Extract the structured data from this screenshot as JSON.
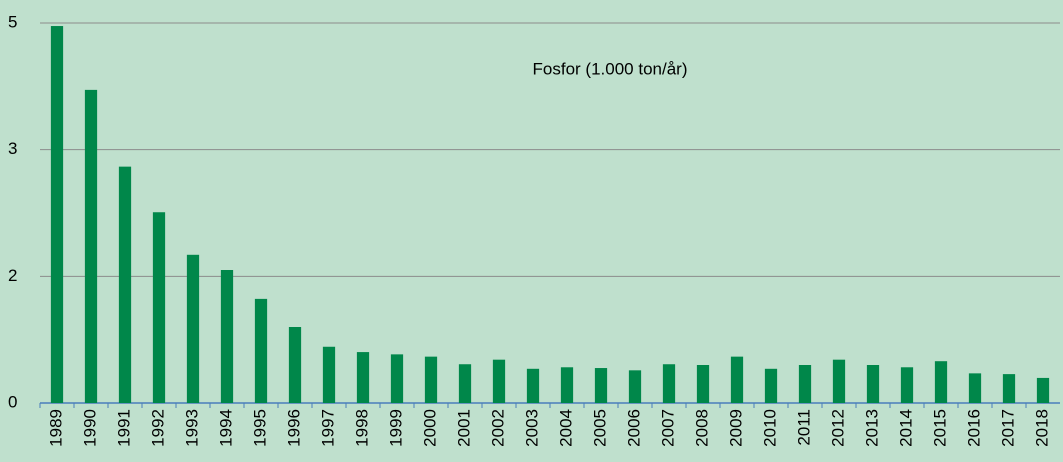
{
  "chart_data": {
    "type": "bar",
    "annotation": "Fosfor (1.000 ton/år)",
    "categories": [
      "1989",
      "1990",
      "1991",
      "1992",
      "1993",
      "1994",
      "1995",
      "1996",
      "1997",
      "1998",
      "1999",
      "2000",
      "2001",
      "2002",
      "2003",
      "2004",
      "2005",
      "2006",
      "2007",
      "2008",
      "2009",
      "2010",
      "2011",
      "2012",
      "2013",
      "2014",
      "2015",
      "2016",
      "2017",
      "2018"
    ],
    "values": [
      4.96,
      4.12,
      3.11,
      2.51,
      1.95,
      1.75,
      1.37,
      1.0,
      0.74,
      0.67,
      0.64,
      0.61,
      0.51,
      0.57,
      0.45,
      0.47,
      0.46,
      0.43,
      0.51,
      0.5,
      0.61,
      0.45,
      0.5,
      0.57,
      0.5,
      0.47,
      0.55,
      0.39,
      0.38,
      0.33
    ],
    "color": "#00874a",
    "ylim": [
      0,
      5
    ],
    "yticks": [
      0,
      {
        "value": 1.6667,
        "label": "2"
      },
      {
        "value": 3.3333,
        "label": "3"
      },
      5
    ],
    "grid": true
  }
}
